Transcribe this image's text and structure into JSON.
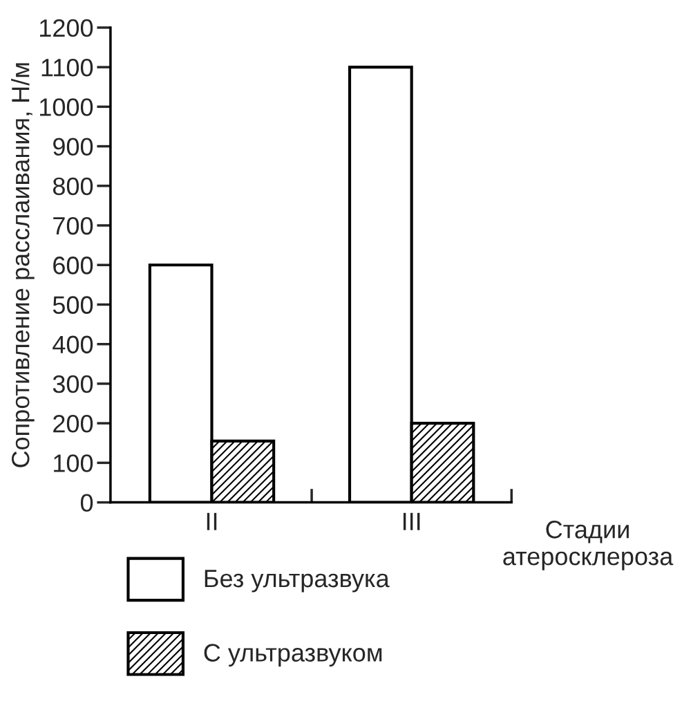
{
  "chart_data": {
    "type": "bar",
    "ylabel": "Сопротивление расслаивания, Н/м",
    "xlabel": "Стадии атеросклероза",
    "categories": [
      "II",
      "III"
    ],
    "series": [
      {
        "name": "Без ультразвука",
        "color": "#ffffff",
        "values": [
          600,
          1100
        ]
      },
      {
        "name": "С ультразвуком",
        "color": "#000000",
        "values": [
          155,
          200
        ]
      }
    ],
    "ylim": [
      0,
      1200
    ],
    "yticks": [
      0,
      100,
      200,
      300,
      400,
      500,
      600,
      700,
      800,
      900,
      1000,
      1100,
      1200
    ],
    "grid": false,
    "legend": "bottom"
  }
}
